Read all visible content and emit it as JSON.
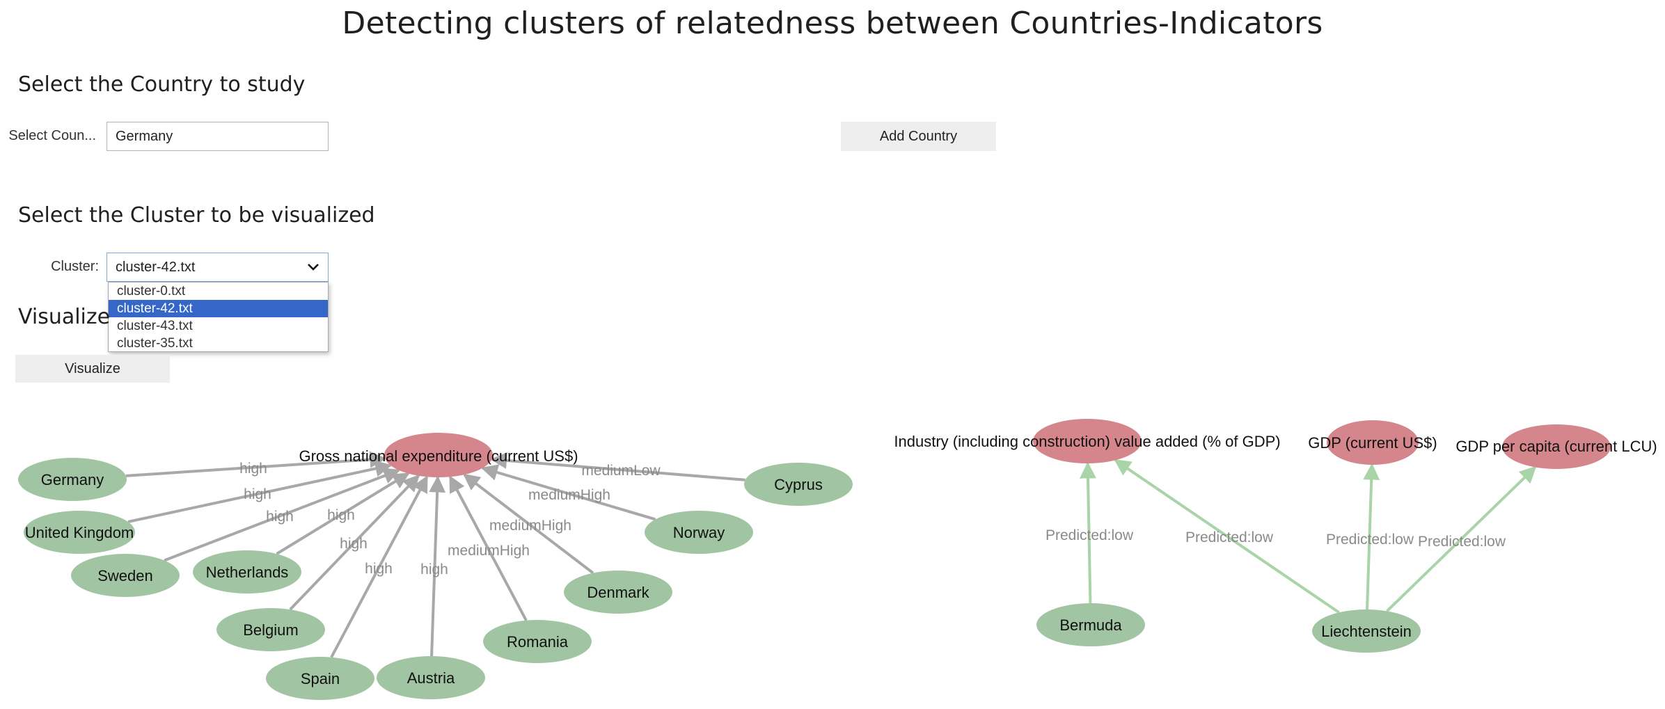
{
  "page_title": "Detecting clusters of relatedness between Countries-Indicators",
  "country_section": {
    "heading": "Select the Country to study",
    "label": "Select Coun...",
    "input_value": "Germany",
    "add_button": "Add Country"
  },
  "cluster_section": {
    "heading": "Select the Cluster to be visualized",
    "label": "Cluster:",
    "selected": "cluster-42.txt",
    "options": [
      "cluster-0.txt",
      "cluster-42.txt",
      "cluster-43.txt",
      "cluster-35.txt"
    ],
    "selected_index": 1
  },
  "visualize_section": {
    "heading": "Visualize",
    "button": "Visualize"
  },
  "colors": {
    "indicator_node": "#d4868c",
    "country_node": "#a1c4a3",
    "edge_gray": "#a8a8a8",
    "edge_green": "#a8d4a8",
    "selected_option": "#3567c9"
  },
  "graph": {
    "indicators": [
      {
        "id": "gne",
        "label": "Gross national expenditure (current US$)"
      },
      {
        "id": "ind",
        "label": "Industry (including construction) value added (% of GDP)"
      },
      {
        "id": "gdp",
        "label": "GDP (current US$)"
      },
      {
        "id": "gdppc",
        "label": "GDP per capita (current LCU)"
      }
    ],
    "countries": [
      {
        "id": "germany",
        "label": "Germany"
      },
      {
        "id": "uk",
        "label": "United Kingdom"
      },
      {
        "id": "sweden",
        "label": "Sweden"
      },
      {
        "id": "netherlands",
        "label": "Netherlands"
      },
      {
        "id": "belgium",
        "label": "Belgium"
      },
      {
        "id": "spain",
        "label": "Spain"
      },
      {
        "id": "austria",
        "label": "Austria"
      },
      {
        "id": "romania",
        "label": "Romania"
      },
      {
        "id": "denmark",
        "label": "Denmark"
      },
      {
        "id": "norway",
        "label": "Norway"
      },
      {
        "id": "cyprus",
        "label": "Cyprus"
      },
      {
        "id": "bermuda",
        "label": "Bermuda"
      },
      {
        "id": "liechtenstein",
        "label": "Liechtenstein"
      }
    ],
    "edges": [
      {
        "from": "germany",
        "to": "gne",
        "label": "high"
      },
      {
        "from": "uk",
        "to": "gne",
        "label": "high"
      },
      {
        "from": "sweden",
        "to": "gne",
        "label": "high"
      },
      {
        "from": "netherlands",
        "to": "gne",
        "label": "high"
      },
      {
        "from": "belgium",
        "to": "gne",
        "label": "high"
      },
      {
        "from": "spain",
        "to": "gne",
        "label": "high"
      },
      {
        "from": "austria",
        "to": "gne",
        "label": "high"
      },
      {
        "from": "romania",
        "to": "gne",
        "label": "mediumHigh"
      },
      {
        "from": "denmark",
        "to": "gne",
        "label": "mediumHigh"
      },
      {
        "from": "norway",
        "to": "gne",
        "label": "mediumHigh"
      },
      {
        "from": "cyprus",
        "to": "gne",
        "label": "mediumLow"
      },
      {
        "from": "bermuda",
        "to": "ind",
        "label": "Predicted:low"
      },
      {
        "from": "liechtenstein",
        "to": "ind",
        "label": "Predicted:low"
      },
      {
        "from": "liechtenstein",
        "to": "gdp",
        "label": "Predicted:low"
      },
      {
        "from": "liechtenstein",
        "to": "gdppc",
        "label": "Predicted:low"
      }
    ]
  }
}
